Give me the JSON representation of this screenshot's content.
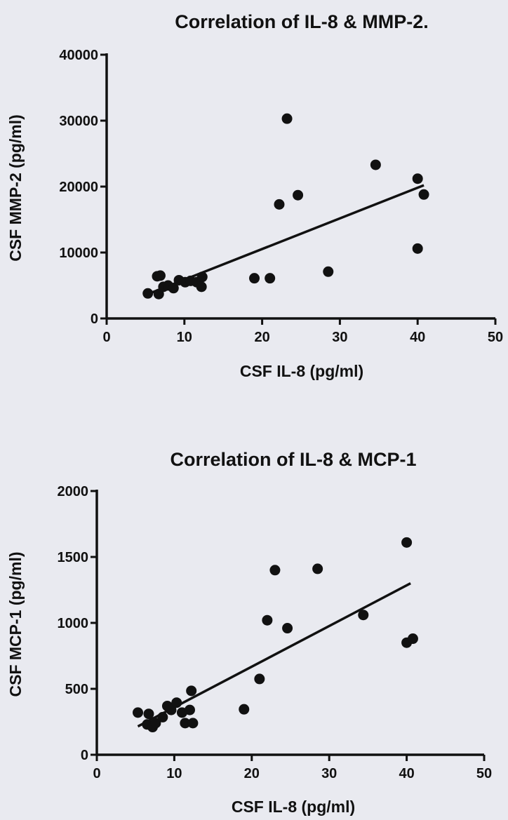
{
  "chart_data": [
    {
      "type": "scatter",
      "title": "Correlation of IL-8 & MMP-2.",
      "xlabel": "CSF IL-8 (pg/ml)",
      "ylabel": "CSF MMP-2 (pg/ml)",
      "xlim": [
        0,
        50
      ],
      "ylim": [
        0,
        40000
      ],
      "xticks": [
        "0",
        "10",
        "20",
        "30",
        "40",
        "50"
      ],
      "yticks": [
        "0",
        "10000",
        "20000",
        "30000",
        "40000"
      ],
      "grid": false,
      "points": [
        {
          "x": 5.3,
          "y": 3800
        },
        {
          "x": 6.7,
          "y": 3700
        },
        {
          "x": 6.5,
          "y": 6400
        },
        {
          "x": 6.9,
          "y": 6500
        },
        {
          "x": 7.3,
          "y": 4800
        },
        {
          "x": 7.9,
          "y": 5000
        },
        {
          "x": 8.6,
          "y": 4600
        },
        {
          "x": 9.3,
          "y": 5800
        },
        {
          "x": 10.1,
          "y": 5500
        },
        {
          "x": 10.8,
          "y": 5700
        },
        {
          "x": 11.6,
          "y": 5500
        },
        {
          "x": 12.3,
          "y": 6300
        },
        {
          "x": 12.2,
          "y": 4800
        },
        {
          "x": 19.0,
          "y": 6100
        },
        {
          "x": 21.0,
          "y": 6100
        },
        {
          "x": 22.2,
          "y": 17300
        },
        {
          "x": 23.2,
          "y": 30300
        },
        {
          "x": 24.6,
          "y": 18700
        },
        {
          "x": 28.5,
          "y": 7100
        },
        {
          "x": 34.6,
          "y": 23300
        },
        {
          "x": 40.0,
          "y": 21200
        },
        {
          "x": 40.0,
          "y": 10600
        },
        {
          "x": 40.8,
          "y": 18800
        }
      ],
      "fit_line": {
        "x": [
          5.3,
          40.8
        ],
        "y": [
          3700,
          20200
        ]
      }
    },
    {
      "type": "scatter",
      "title": "Correlation of IL-8 & MCP-1",
      "xlabel": "CSF IL-8 (pg/ml)",
      "ylabel": "CSF MCP-1 (pg/ml)",
      "xlim": [
        0,
        50
      ],
      "ylim": [
        0,
        2000
      ],
      "xticks": [
        "0",
        "10",
        "20",
        "30",
        "40",
        "50"
      ],
      "yticks": [
        "0",
        "500",
        "1000",
        "1500",
        "2000"
      ],
      "grid": false,
      "points": [
        {
          "x": 5.3,
          "y": 320
        },
        {
          "x": 6.5,
          "y": 230
        },
        {
          "x": 6.7,
          "y": 310
        },
        {
          "x": 7.2,
          "y": 210
        },
        {
          "x": 7.6,
          "y": 240
        },
        {
          "x": 8.5,
          "y": 285
        },
        {
          "x": 9.1,
          "y": 370
        },
        {
          "x": 9.6,
          "y": 340
        },
        {
          "x": 10.3,
          "y": 395
        },
        {
          "x": 11.0,
          "y": 320
        },
        {
          "x": 11.4,
          "y": 240
        },
        {
          "x": 12.0,
          "y": 340
        },
        {
          "x": 12.2,
          "y": 485
        },
        {
          "x": 12.4,
          "y": 240
        },
        {
          "x": 19.0,
          "y": 345
        },
        {
          "x": 21.0,
          "y": 575
        },
        {
          "x": 22.0,
          "y": 1020
        },
        {
          "x": 23.0,
          "y": 1400
        },
        {
          "x": 24.6,
          "y": 960
        },
        {
          "x": 28.5,
          "y": 1410
        },
        {
          "x": 34.4,
          "y": 1060
        },
        {
          "x": 40.0,
          "y": 1610
        },
        {
          "x": 40.0,
          "y": 850
        },
        {
          "x": 40.8,
          "y": 880
        }
      ],
      "fit_line": {
        "x": [
          5.3,
          40.5
        ],
        "y": [
          215,
          1300
        ]
      }
    }
  ]
}
